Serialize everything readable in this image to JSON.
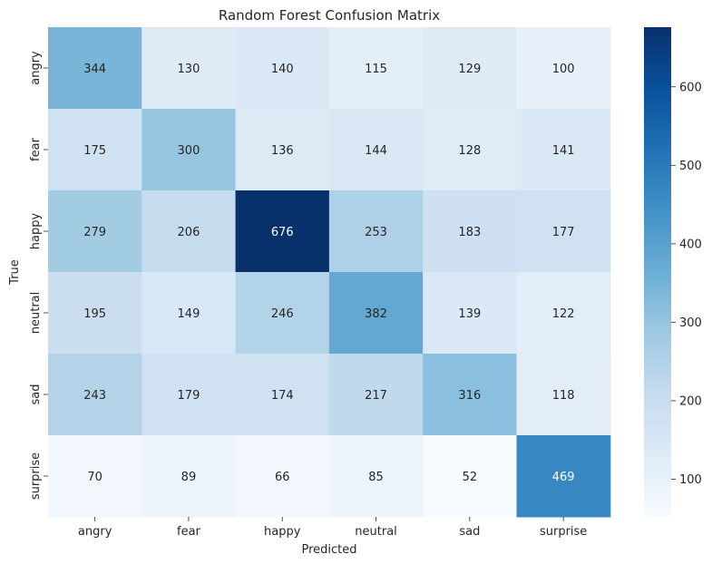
{
  "chart_data": {
    "type": "heatmap",
    "title": "Random Forest Confusion Matrix",
    "xlabel": "Predicted",
    "ylabel": "True",
    "x_categories": [
      "angry",
      "fear",
      "happy",
      "neutral",
      "sad",
      "surprise"
    ],
    "y_categories": [
      "angry",
      "fear",
      "happy",
      "neutral",
      "sad",
      "surprise"
    ],
    "values": [
      [
        344,
        130,
        140,
        115,
        129,
        100
      ],
      [
        175,
        300,
        136,
        144,
        128,
        141
      ],
      [
        279,
        206,
        676,
        253,
        183,
        177
      ],
      [
        195,
        149,
        246,
        382,
        139,
        122
      ],
      [
        243,
        179,
        174,
        217,
        316,
        118
      ],
      [
        70,
        89,
        66,
        85,
        52,
        469
      ]
    ],
    "colormap": "Blues",
    "value_range": [
      52,
      676
    ],
    "colorbar_ticks": [
      100,
      200,
      300,
      400,
      500,
      600
    ],
    "annotations": true
  }
}
